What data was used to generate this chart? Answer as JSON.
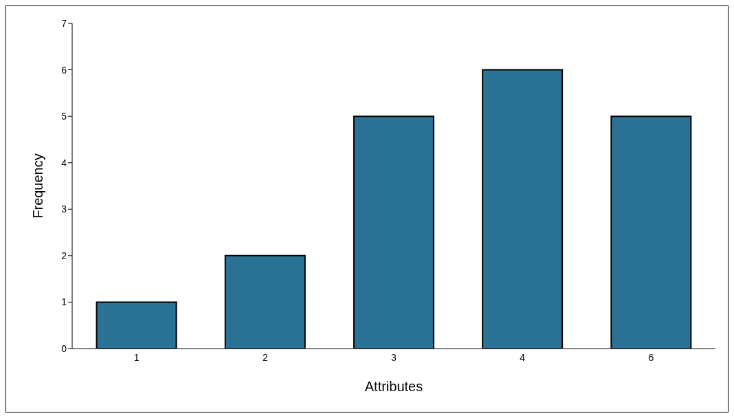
{
  "chart_data": {
    "type": "bar",
    "xlabel": "Attributes",
    "ylabel": "Frequency",
    "categories": [
      "1",
      "2",
      "3",
      "4",
      "6"
    ],
    "values": [
      1,
      2,
      5,
      6,
      5
    ],
    "color": "#2a7396",
    "ylim": [
      0,
      7
    ],
    "yticks": [
      0,
      1,
      2,
      3,
      4,
      5,
      6,
      7
    ],
    "grid": false,
    "legend": false
  }
}
